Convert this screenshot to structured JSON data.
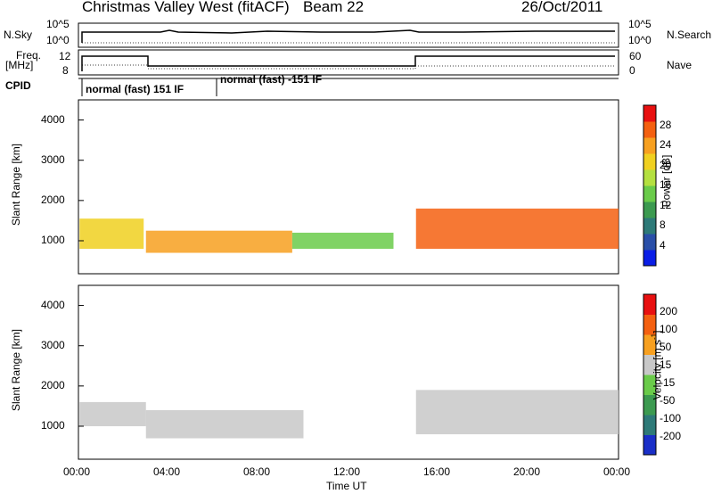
{
  "header": {
    "station": "Christmas Valley West (fitACF)",
    "beam": "Beam 22",
    "date": "26/Oct/2011"
  },
  "top_panels": {
    "nsky_label": "N.Sky",
    "nsearch_label": "N.Search",
    "freq_label": "Freq.",
    "freq_unit": "[MHz]",
    "nave_label": "Nave",
    "cpid_label": "CPID",
    "noise_ticks": [
      "10^5",
      "10^0"
    ],
    "freq_ticks": [
      "12",
      "8"
    ],
    "nave_ticks": [
      "60",
      "0"
    ],
    "cpid_segments": [
      "normal (fast) 151 IF",
      "normal (fast) -151 IF"
    ]
  },
  "colorbars": {
    "power": {
      "label": "Power [dB]",
      "ticks": [
        "28",
        "24",
        "20",
        "16",
        "12",
        "8",
        "4"
      ],
      "colors": [
        "#0a1ee6",
        "#2a4fa8",
        "#2e7a78",
        "#3c9a50",
        "#6acb4a",
        "#b4e040",
        "#f0d020",
        "#f7a020",
        "#f46010",
        "#e81010"
      ]
    },
    "velocity": {
      "label": "Velocity [m s",
      "label_sup": "-1",
      "label_end": "]",
      "ticks": [
        "200",
        "100",
        "50",
        "15",
        "-15",
        "-50",
        "-100",
        "-200"
      ],
      "colors": [
        "#1a2fc8",
        "#2e7a78",
        "#3c9a50",
        "#6acb4a",
        "#c8c8c8",
        "#f7a020",
        "#f46010",
        "#e81010"
      ]
    }
  },
  "chart_data": [
    {
      "type": "heatmap",
      "panel": "power",
      "ylabel": "Slant Range [km]",
      "yticks": [
        "4000",
        "3000",
        "2000",
        "1000"
      ],
      "ylim": [
        180,
        4500
      ],
      "xlim": [
        0,
        24
      ],
      "bands": [
        {
          "t0": 0.05,
          "t1": 2.9,
          "r0": 800,
          "r1": 1550,
          "color": "#f0d020"
        },
        {
          "t0": 3.0,
          "t1": 9.5,
          "r0": 700,
          "r1": 1250,
          "color": "#f7a020"
        },
        {
          "t0": 9.5,
          "t1": 14.0,
          "r0": 800,
          "r1": 1200,
          "color": "#6acb4a"
        },
        {
          "t0": 15.0,
          "t1": 24.0,
          "r0": 800,
          "r1": 1800,
          "color": "#f46010"
        }
      ]
    },
    {
      "type": "heatmap",
      "panel": "velocity",
      "ylabel": "Slant Range [km]",
      "yticks": [
        "4000",
        "3000",
        "2000",
        "1000"
      ],
      "ylim": [
        180,
        4500
      ],
      "xlim": [
        0,
        24
      ],
      "bands": [
        {
          "t0": 0.05,
          "t1": 3.0,
          "r0": 1000,
          "r1": 1600,
          "color": "#c8c8c8"
        },
        {
          "t0": 3.0,
          "t1": 10.0,
          "r0": 700,
          "r1": 1400,
          "color": "#c8c8c8"
        },
        {
          "t0": 15.0,
          "t1": 24.0,
          "r0": 800,
          "r1": 1900,
          "color": "#c8c8c8"
        }
      ],
      "xlabel": "Time UT",
      "xticks": [
        "00:00",
        "04:00",
        "08:00",
        "12:00",
        "16:00",
        "20:00",
        "00:00"
      ]
    }
  ]
}
